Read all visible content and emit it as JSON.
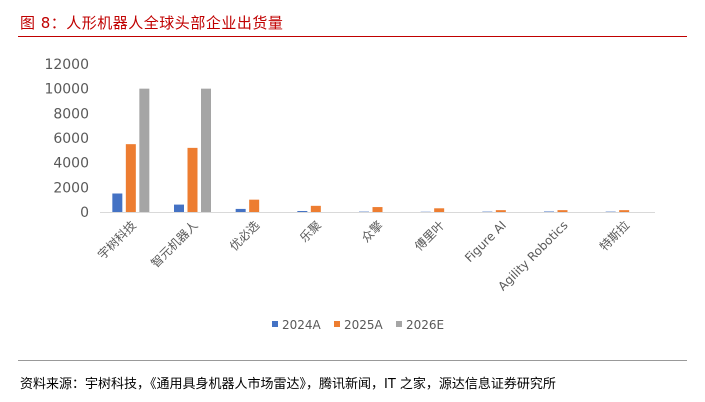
{
  "figure_title": "图 8：人形机器人全球头部企业出货量",
  "source_note": "资料来源：宇树科技，《通用具身机器人市场雷达》，腾讯新闻，IT 之家，源达信息证券研究所",
  "colors": {
    "title": "#c00000",
    "s2024": "#4472c4",
    "s2025": "#ed7d31",
    "s2026": "#a5a5a5"
  },
  "chart_data": {
    "type": "bar",
    "title": "",
    "xlabel": "",
    "ylabel": "",
    "ylim": [
      0,
      12000
    ],
    "yticks": [
      0,
      2000,
      4000,
      6000,
      8000,
      10000,
      12000
    ],
    "grid": false,
    "legend_position": "bottom",
    "categories": [
      "宇树科技",
      "智元机器人",
      "优必选",
      "乐聚",
      "众擎",
      "傅里叶",
      "Figure AI",
      "Agility Robotics",
      "特斯拉"
    ],
    "series": [
      {
        "name": "2024A",
        "color": "#4472c4",
        "values": [
          1500,
          600,
          250,
          80,
          30,
          20,
          30,
          40,
          30
        ]
      },
      {
        "name": "2025A",
        "color": "#ed7d31",
        "values": [
          5500,
          5200,
          1000,
          500,
          400,
          300,
          150,
          150,
          150
        ]
      },
      {
        "name": "2026E",
        "color": "#a5a5a5",
        "values": [
          10000,
          10000,
          0,
          0,
          0,
          0,
          0,
          0,
          0
        ]
      }
    ]
  }
}
